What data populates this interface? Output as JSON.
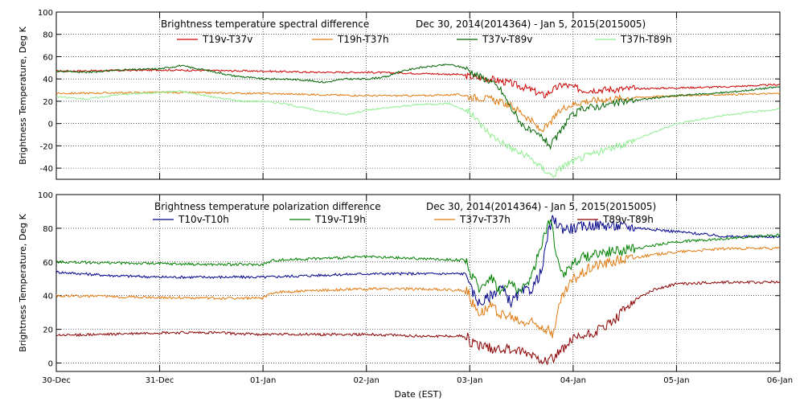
{
  "chart_data": [
    {
      "type": "line",
      "title": "Brightness temperature spectral difference",
      "subtitle": "Dec 30, 2014(2014364) - Jan  5, 2015(2015005)",
      "ylabel": "Brightness Temperature, Deg K",
      "xlabel": "",
      "xlim": [
        0,
        7
      ],
      "ylim": [
        -50,
        100
      ],
      "yticks": [
        -40,
        -20,
        0,
        20,
        40,
        60,
        80,
        100
      ],
      "grid": true,
      "legend_position": "top",
      "series": [
        {
          "name": "T19v-T37v",
          "color": "#cc0000",
          "points": [
            [
              0,
              47
            ],
            [
              0.5,
              47.5
            ],
            [
              1,
              48
            ],
            [
              1.5,
              47.5
            ],
            [
              2,
              47
            ],
            [
              2.5,
              46
            ],
            [
              3,
              46
            ],
            [
              3.5,
              45
            ],
            [
              3.9,
              44
            ],
            [
              4.0,
              42
            ],
            [
              4.2,
              40
            ],
            [
              4.4,
              36
            ],
            [
              4.6,
              30
            ],
            [
              4.72,
              25
            ],
            [
              4.8,
              30
            ],
            [
              4.9,
              35
            ],
            [
              5.1,
              30
            ],
            [
              5.5,
              31
            ],
            [
              6,
              32
            ],
            [
              6.5,
              33
            ],
            [
              7,
              35
            ]
          ]
        },
        {
          "name": "T19h-T37h",
          "color": "#e07a10",
          "points": [
            [
              0,
              27
            ],
            [
              0.5,
              27.5
            ],
            [
              1,
              28
            ],
            [
              1.5,
              27.5
            ],
            [
              2,
              27
            ],
            [
              2.5,
              26
            ],
            [
              3,
              25
            ],
            [
              3.5,
              25
            ],
            [
              3.9,
              26
            ],
            [
              4.0,
              24
            ],
            [
              4.2,
              22
            ],
            [
              4.4,
              16
            ],
            [
              4.5,
              10
            ],
            [
              4.6,
              2
            ],
            [
              4.68,
              -6
            ],
            [
              4.76,
              -2
            ],
            [
              4.84,
              8
            ],
            [
              4.92,
              15
            ],
            [
              5.1,
              20
            ],
            [
              5.5,
              23
            ],
            [
              6,
              25
            ],
            [
              6.5,
              26
            ],
            [
              7,
              27
            ]
          ]
        },
        {
          "name": "T37v-T89v",
          "color": "#006400",
          "points": [
            [
              0,
              47
            ],
            [
              0.3,
              46
            ],
            [
              0.6,
              48
            ],
            [
              1.0,
              49
            ],
            [
              1.2,
              52
            ],
            [
              1.5,
              47
            ],
            [
              1.7,
              43
            ],
            [
              2.0,
              40
            ],
            [
              2.2,
              40
            ],
            [
              2.4,
              39
            ],
            [
              2.6,
              37
            ],
            [
              2.8,
              40
            ],
            [
              3.0,
              40
            ],
            [
              3.2,
              42
            ],
            [
              3.3,
              46
            ],
            [
              3.5,
              50
            ],
            [
              3.8,
              53
            ],
            [
              3.95,
              50
            ],
            [
              4.1,
              42
            ],
            [
              4.2,
              38
            ],
            [
              4.3,
              30
            ],
            [
              4.4,
              14
            ],
            [
              4.5,
              0
            ],
            [
              4.6,
              -8
            ],
            [
              4.7,
              -12
            ],
            [
              4.78,
              -20
            ],
            [
              4.86,
              -10
            ],
            [
              4.95,
              4
            ],
            [
              5.1,
              14
            ],
            [
              5.3,
              16
            ],
            [
              5.5,
              20
            ],
            [
              6.0,
              25
            ],
            [
              6.5,
              28
            ],
            [
              7,
              33
            ]
          ]
        },
        {
          "name": "T37h-T89h",
          "color": "#90ee90",
          "points": [
            [
              0,
              24
            ],
            [
              0.3,
              22
            ],
            [
              0.6,
              26
            ],
            [
              1.0,
              28
            ],
            [
              1.2,
              29
            ],
            [
              1.5,
              24
            ],
            [
              1.8,
              20
            ],
            [
              2.0,
              20
            ],
            [
              2.2,
              18
            ],
            [
              2.5,
              12
            ],
            [
              2.8,
              8
            ],
            [
              3.0,
              12
            ],
            [
              3.3,
              15
            ],
            [
              3.5,
              17
            ],
            [
              3.8,
              18
            ],
            [
              4.0,
              10
            ],
            [
              4.2,
              -10
            ],
            [
              4.4,
              -22
            ],
            [
              4.6,
              -32
            ],
            [
              4.7,
              -40
            ],
            [
              4.8,
              -47
            ],
            [
              4.9,
              -38
            ],
            [
              5.1,
              -30
            ],
            [
              5.3,
              -24
            ],
            [
              5.5,
              -18
            ],
            [
              6.0,
              0
            ],
            [
              6.5,
              8
            ],
            [
              7,
              13
            ]
          ]
        }
      ]
    },
    {
      "type": "line",
      "title": "Brightness temperature polarization difference",
      "subtitle": "Dec 30, 2014(2014364) - Jan  5, 2015(2015005)",
      "ylabel": "Brightness Temperature, Deg K",
      "xlabel": "Date (EST)",
      "xlim": [
        0,
        7
      ],
      "ylim": [
        -5,
        100
      ],
      "yticks": [
        0,
        20,
        40,
        60,
        80,
        100
      ],
      "xticks": [
        "30-Dec",
        "31-Dec",
        "01-Jan",
        "02-Jan",
        "03-Jan",
        "04-Jan",
        "05-Jan",
        "06-Jan"
      ],
      "grid": true,
      "legend_position": "top",
      "series": [
        {
          "name": "T10v-T10h",
          "color": "#00008b",
          "points": [
            [
              0,
              54
            ],
            [
              0.5,
              52
            ],
            [
              1,
              51
            ],
            [
              1.5,
              51
            ],
            [
              2,
              51
            ],
            [
              2.5,
              52
            ],
            [
              3,
              53
            ],
            [
              3.5,
              53
            ],
            [
              3.98,
              53
            ],
            [
              4.0,
              45
            ],
            [
              4.1,
              35
            ],
            [
              4.2,
              40
            ],
            [
              4.3,
              45
            ],
            [
              4.4,
              36
            ],
            [
              4.5,
              42
            ],
            [
              4.6,
              44
            ],
            [
              4.7,
              55
            ],
            [
              4.75,
              75
            ],
            [
              4.8,
              85
            ],
            [
              4.9,
              80
            ],
            [
              5.0,
              80
            ],
            [
              5.2,
              82
            ],
            [
              5.5,
              81
            ],
            [
              6.0,
              78
            ],
            [
              6.5,
              75
            ],
            [
              7,
              75
            ]
          ]
        },
        {
          "name": "T19v-T19h",
          "color": "#008000",
          "points": [
            [
              0,
              60
            ],
            [
              0.5,
              59.5
            ],
            [
              1,
              59
            ],
            [
              1.5,
              58.5
            ],
            [
              2,
              58.5
            ],
            [
              2.1,
              61
            ],
            [
              2.5,
              62
            ],
            [
              3,
              63
            ],
            [
              3.5,
              62
            ],
            [
              3.98,
              61
            ],
            [
              4.0,
              53
            ],
            [
              4.1,
              44
            ],
            [
              4.2,
              52
            ],
            [
              4.3,
              42
            ],
            [
              4.4,
              48
            ],
            [
              4.5,
              42
            ],
            [
              4.6,
              52
            ],
            [
              4.7,
              72
            ],
            [
              4.78,
              87
            ],
            [
              4.82,
              70
            ],
            [
              4.9,
              52
            ],
            [
              5.0,
              60
            ],
            [
              5.2,
              65
            ],
            [
              5.5,
              67
            ],
            [
              6.0,
              72
            ],
            [
              6.5,
              74
            ],
            [
              7,
              76
            ]
          ]
        },
        {
          "name": "T37v-T37h",
          "color": "#e07a10",
          "points": [
            [
              0,
              40
            ],
            [
              0.5,
              39.5
            ],
            [
              1,
              39
            ],
            [
              1.5,
              38.5
            ],
            [
              2,
              38.5
            ],
            [
              2.1,
              42
            ],
            [
              2.5,
              43
            ],
            [
              3,
              44
            ],
            [
              3.5,
              44
            ],
            [
              3.98,
              43
            ],
            [
              4.0,
              38
            ],
            [
              4.1,
              30
            ],
            [
              4.2,
              34
            ],
            [
              4.3,
              29
            ],
            [
              4.4,
              27
            ],
            [
              4.5,
              24
            ],
            [
              4.6,
              24
            ],
            [
              4.7,
              22
            ],
            [
              4.8,
              17
            ],
            [
              4.85,
              30
            ],
            [
              4.9,
              40
            ],
            [
              5.0,
              50
            ],
            [
              5.2,
              58
            ],
            [
              5.5,
              62
            ],
            [
              6.0,
              66
            ],
            [
              6.5,
              68
            ],
            [
              7,
              68
            ]
          ]
        },
        {
          "name": "T89v-T89h",
          "color": "#8b0000",
          "points": [
            [
              0,
              16.5
            ],
            [
              0.5,
              17
            ],
            [
              1,
              18
            ],
            [
              1.5,
              18
            ],
            [
              2,
              17
            ],
            [
              2.5,
              17
            ],
            [
              3,
              17
            ],
            [
              3.5,
              16
            ],
            [
              3.98,
              16
            ],
            [
              4.0,
              12
            ],
            [
              4.2,
              9
            ],
            [
              4.4,
              8
            ],
            [
              4.6,
              5
            ],
            [
              4.72,
              2
            ],
            [
              4.8,
              3
            ],
            [
              4.9,
              8
            ],
            [
              5.0,
              14
            ],
            [
              5.2,
              18
            ],
            [
              5.4,
              25
            ],
            [
              5.6,
              38
            ],
            [
              5.8,
              44
            ],
            [
              6.0,
              47
            ],
            [
              6.5,
              48
            ],
            [
              7,
              48
            ]
          ]
        }
      ]
    }
  ]
}
